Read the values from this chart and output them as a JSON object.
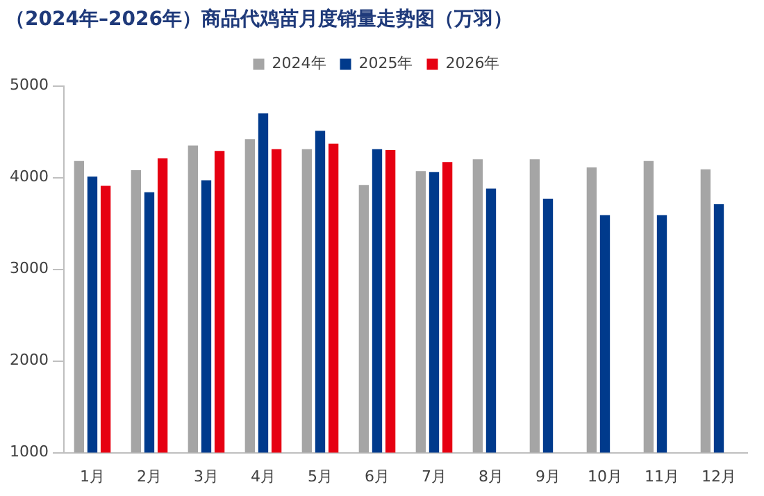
{
  "chart_data": {
    "type": "bar",
    "title": "（2024年–2026年）商品代鸡苗月度销量走势图（万羽）",
    "categories": [
      "1月",
      "2月",
      "3月",
      "4月",
      "5月",
      "6月",
      "7月",
      "8月",
      "9月",
      "10月",
      "11月",
      "12月"
    ],
    "series": [
      {
        "name": "2024年",
        "color": "#a5a5a5",
        "values": [
          4180,
          4080,
          4350,
          4420,
          4310,
          3920,
          4070,
          4200,
          4200,
          4110,
          4180,
          4090
        ]
      },
      {
        "name": "2025年",
        "color": "#003a8c",
        "values": [
          4010,
          3840,
          3970,
          4700,
          4510,
          4310,
          4060,
          3880,
          3770,
          3590,
          3590,
          3710
        ]
      },
      {
        "name": "2026年",
        "color": "#e60012",
        "values": [
          3910,
          4210,
          4290,
          4310,
          4370,
          4300,
          4170,
          null,
          null,
          null,
          null,
          null
        ]
      }
    ],
    "ylim": [
      1000,
      5000
    ],
    "yticks": [
      1000,
      2000,
      3000,
      4000,
      5000
    ],
    "grid": false,
    "legend": "top"
  }
}
